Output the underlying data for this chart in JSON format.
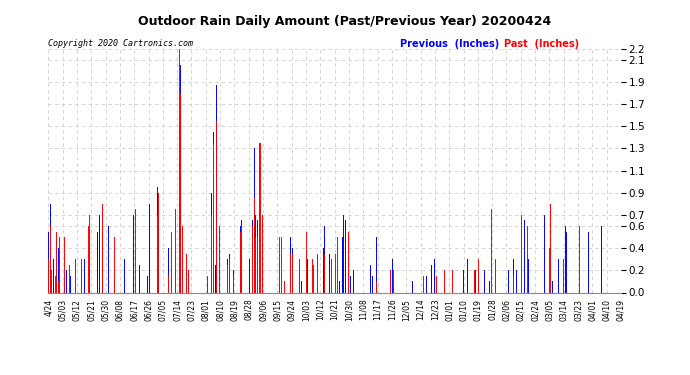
{
  "title": "Outdoor Rain Daily Amount (Past/Previous Year) 20200424",
  "copyright": "Copyright 2020 Cartronics.com",
  "legend_previous": "Previous",
  "legend_past": "Past",
  "legend_units": "(Inches)",
  "previous_color": "#0000FF",
  "past_color": "#FF0000",
  "background_color": "#FFFFFF",
  "grid_color": "#CCCCCC",
  "ylim": [
    0.0,
    2.2
  ],
  "yticks": [
    0.0,
    0.2,
    0.4,
    0.6,
    0.7,
    0.9,
    1.1,
    1.3,
    1.5,
    1.7,
    1.9,
    2.1,
    2.2
  ],
  "xtick_labels": [
    "4/24",
    "05/03",
    "05/12",
    "05/21",
    "05/30",
    "06/08",
    "06/17",
    "06/26",
    "07/05",
    "07/14",
    "07/23",
    "08/01",
    "08/10",
    "08/19",
    "08/28",
    "09/06",
    "09/15",
    "09/24",
    "10/03",
    "10/12",
    "10/21",
    "10/30",
    "11/08",
    "11/17",
    "11/26",
    "12/05",
    "12/14",
    "12/23",
    "01/01",
    "01/10",
    "01/19",
    "01/28",
    "02/06",
    "02/15",
    "02/24",
    "03/05",
    "03/14",
    "03/23",
    "04/01",
    "04/10",
    "04/19"
  ],
  "n_days": 366,
  "previous_rain": [
    0.55,
    0.8,
    0.1,
    0.3,
    0.0,
    0.5,
    0.4,
    0.3,
    0.0,
    0.0,
    0.1,
    0.2,
    0.0,
    0.0,
    0.15,
    0.0,
    0.0,
    0.25,
    0.0,
    0.0,
    0.0,
    0.2,
    0.0,
    0.3,
    0.0,
    0.0,
    0.2,
    0.0,
    0.0,
    0.0,
    0.0,
    0.55,
    0.7,
    0.0,
    0.15,
    0.0,
    0.0,
    0.0,
    0.6,
    0.0,
    0.0,
    0.0,
    0.1,
    0.0,
    0.0,
    0.0,
    0.0,
    0.0,
    0.3,
    0.0,
    0.0,
    0.0,
    0.0,
    0.0,
    0.7,
    0.0,
    0.0,
    0.0,
    0.25,
    0.0,
    0.0,
    0.0,
    0.0,
    0.15,
    0.8,
    0.0,
    0.0,
    0.0,
    0.0,
    0.95,
    0.6,
    0.0,
    0.0,
    0.0,
    0.0,
    0.0,
    0.4,
    0.0,
    0.0,
    0.0,
    0.0,
    0.3,
    0.0,
    1.5,
    2.05,
    0.3,
    0.0,
    0.0,
    0.2,
    0.1,
    0.0,
    0.0,
    0.0,
    0.0,
    0.0,
    0.0,
    0.0,
    0.0,
    0.0,
    0.0,
    0.0,
    0.1,
    0.0,
    0.0,
    0.9,
    1.45,
    0.25,
    1.87,
    0.0,
    0.55,
    0.0,
    0.0,
    0.0,
    0.0,
    0.3,
    0.35,
    0.0,
    0.0,
    0.2,
    0.0,
    0.0,
    0.0,
    0.6,
    0.65,
    0.0,
    0.0,
    0.0,
    0.0,
    0.3,
    0.0,
    0.65,
    1.3,
    0.7,
    0.65,
    0.0,
    0.0,
    0.0,
    0.0,
    0.0,
    0.0,
    0.0,
    0.0,
    0.0,
    0.0,
    0.0,
    0.0,
    0.0,
    0.3,
    0.0,
    0.0,
    0.0,
    0.0,
    0.0,
    0.0,
    0.5,
    0.4,
    0.0,
    0.0,
    0.0,
    0.0,
    0.0,
    0.1,
    0.0,
    0.0,
    0.0,
    0.3,
    0.0,
    0.0,
    0.0,
    0.0,
    0.0,
    0.0,
    0.0,
    0.0,
    0.0,
    0.4,
    0.6,
    0.0,
    0.0,
    0.35,
    0.0,
    0.0,
    0.0,
    0.0,
    0.0,
    0.1,
    0.0,
    0.5,
    0.7,
    0.65,
    0.0,
    0.0,
    0.15,
    0.0,
    0.2,
    0.0,
    0.0,
    0.0,
    0.0,
    0.0,
    0.0,
    0.0,
    0.0,
    0.0,
    0.0,
    0.25,
    0.15,
    0.0,
    0.0,
    0.5,
    0.0,
    0.0,
    0.0,
    0.0,
    0.0,
    0.0,
    0.0,
    0.0,
    0.2,
    0.3,
    0.1,
    0.0,
    0.0,
    0.0,
    0.0,
    0.0,
    0.0,
    0.0,
    0.0,
    0.0,
    0.0,
    0.0,
    0.1,
    0.0,
    0.0,
    0.0,
    0.0,
    0.0,
    0.0,
    0.0,
    0.0,
    0.15,
    0.0,
    0.0,
    0.25,
    0.0,
    0.3,
    0.0,
    0.0,
    0.0,
    0.0,
    0.0,
    0.0,
    0.0,
    0.0,
    0.0,
    0.0,
    0.0,
    0.0,
    0.0,
    0.0,
    0.0,
    0.0,
    0.0,
    0.2,
    0.0,
    0.0,
    0.3,
    0.0,
    0.0,
    0.0,
    0.0,
    0.2,
    0.0,
    0.0,
    0.0,
    0.0,
    0.0,
    0.2,
    0.0,
    0.0,
    0.1,
    0.0,
    0.0,
    0.0,
    0.2,
    0.0,
    0.0,
    0.0,
    0.0,
    0.0,
    0.0,
    0.0,
    0.2,
    0.0,
    0.0,
    0.3,
    0.0,
    0.2,
    0.0,
    0.0,
    0.0,
    0.0,
    0.65,
    0.0,
    0.0,
    0.3,
    0.0,
    0.0,
    0.0,
    0.0,
    0.0,
    0.0,
    0.0,
    0.0,
    0.0,
    0.7,
    0.0,
    0.0,
    0.0,
    0.0,
    0.1,
    0.0,
    0.0,
    0.0,
    0.3,
    0.0,
    0.0,
    0.0,
    0.6,
    0.55,
    0.0,
    0.0,
    0.0,
    0.0,
    0.0,
    0.0,
    0.0,
    0.0,
    0.0,
    0.0,
    0.0,
    0.0,
    0.0,
    0.55,
    0.0,
    0.0,
    0.0,
    0.0,
    0.0,
    0.0,
    0.0,
    0.6,
    0.0
  ],
  "past_rain": [
    0.3,
    0.6,
    0.2,
    0.0,
    0.15,
    0.55,
    0.1,
    0.5,
    0.0,
    0.0,
    0.5,
    0.0,
    0.0,
    0.25,
    0.0,
    0.0,
    0.0,
    0.3,
    0.0,
    0.0,
    0.0,
    0.3,
    0.0,
    0.0,
    0.0,
    0.6,
    0.7,
    0.0,
    0.0,
    0.0,
    0.0,
    0.0,
    0.0,
    0.0,
    0.8,
    0.0,
    0.0,
    0.0,
    0.0,
    0.0,
    0.0,
    0.0,
    0.5,
    0.0,
    0.0,
    0.0,
    0.0,
    0.0,
    0.0,
    0.0,
    0.0,
    0.0,
    0.0,
    0.0,
    0.0,
    0.75,
    0.0,
    0.0,
    0.0,
    0.0,
    0.0,
    0.0,
    0.0,
    0.0,
    0.0,
    0.0,
    0.0,
    0.0,
    0.0,
    0.7,
    0.9,
    0.0,
    0.0,
    0.0,
    0.0,
    0.0,
    0.15,
    0.0,
    0.55,
    0.0,
    0.0,
    0.75,
    0.0,
    2.2,
    1.8,
    0.6,
    0.0,
    0.0,
    0.35,
    0.2,
    0.0,
    0.0,
    0.0,
    0.0,
    0.0,
    0.0,
    0.0,
    0.0,
    0.0,
    0.0,
    0.0,
    0.15,
    0.0,
    0.0,
    0.7,
    1.35,
    0.0,
    1.55,
    0.0,
    0.6,
    0.0,
    0.0,
    0.0,
    0.0,
    0.25,
    0.3,
    0.0,
    0.0,
    0.15,
    0.0,
    0.0,
    0.0,
    0.55,
    0.6,
    0.0,
    0.0,
    0.0,
    0.0,
    0.0,
    0.0,
    0.6,
    0.85,
    0.5,
    0.5,
    1.35,
    1.35,
    0.7,
    0.0,
    0.0,
    0.0,
    0.0,
    0.0,
    0.0,
    0.0,
    0.0,
    0.0,
    0.0,
    0.5,
    0.5,
    0.0,
    0.1,
    0.0,
    0.0,
    0.0,
    0.35,
    0.35,
    0.0,
    0.0,
    0.0,
    0.0,
    0.3,
    0.0,
    0.0,
    0.0,
    0.55,
    0.0,
    0.0,
    0.0,
    0.3,
    0.25,
    0.0,
    0.35,
    0.0,
    0.0,
    0.0,
    0.0,
    0.35,
    0.0,
    0.0,
    0.0,
    0.3,
    0.0,
    0.0,
    0.35,
    0.5,
    0.0,
    0.0,
    0.0,
    0.0,
    0.0,
    0.0,
    0.55,
    0.0,
    0.0,
    0.0,
    0.0,
    0.0,
    0.0,
    0.0,
    0.0,
    0.0,
    0.0,
    0.0,
    0.0,
    0.0,
    0.0,
    0.0,
    0.0,
    0.0,
    0.1,
    0.0,
    0.0,
    0.0,
    0.0,
    0.0,
    0.0,
    0.0,
    0.0,
    0.2,
    0.0,
    0.2,
    0.0,
    0.0,
    0.0,
    0.0,
    0.0,
    0.0,
    0.0,
    0.0,
    0.0,
    0.0,
    0.0,
    0.0,
    0.0,
    0.0,
    0.0,
    0.0,
    0.0,
    0.0,
    0.15,
    0.0,
    0.0,
    0.0,
    0.0,
    0.0,
    0.0,
    0.0,
    0.15,
    0.0,
    0.0,
    0.0,
    0.0,
    0.2,
    0.0,
    0.0,
    0.0,
    0.0,
    0.2,
    0.0,
    0.0,
    0.0,
    0.0,
    0.0,
    0.0,
    0.0,
    0.0,
    0.0,
    0.0,
    0.0,
    0.0,
    0.0,
    0.2,
    0.0,
    0.0,
    0.3,
    0.0,
    0.0,
    0.0,
    0.0,
    0.0,
    0.0,
    0.0,
    0.75,
    0.0,
    0.0,
    0.3,
    0.0,
    0.0,
    0.0,
    0.0,
    0.0,
    0.0,
    0.0,
    0.0,
    0.0,
    0.0,
    0.15,
    0.0,
    0.0,
    0.0,
    0.0,
    0.7,
    0.0,
    0.0,
    0.0,
    0.6,
    0.0,
    0.0,
    0.0,
    0.0,
    0.0,
    0.0,
    0.0,
    0.0,
    0.0,
    0.0,
    0.0,
    0.0,
    0.0,
    0.4,
    0.8,
    0.0,
    0.0,
    0.0,
    0.0,
    0.0,
    0.0,
    0.0,
    0.3,
    0.0,
    0.0,
    0.0,
    0.0,
    0.0,
    0.0,
    0.0,
    0.0,
    0.0,
    0.6,
    0.0
  ]
}
